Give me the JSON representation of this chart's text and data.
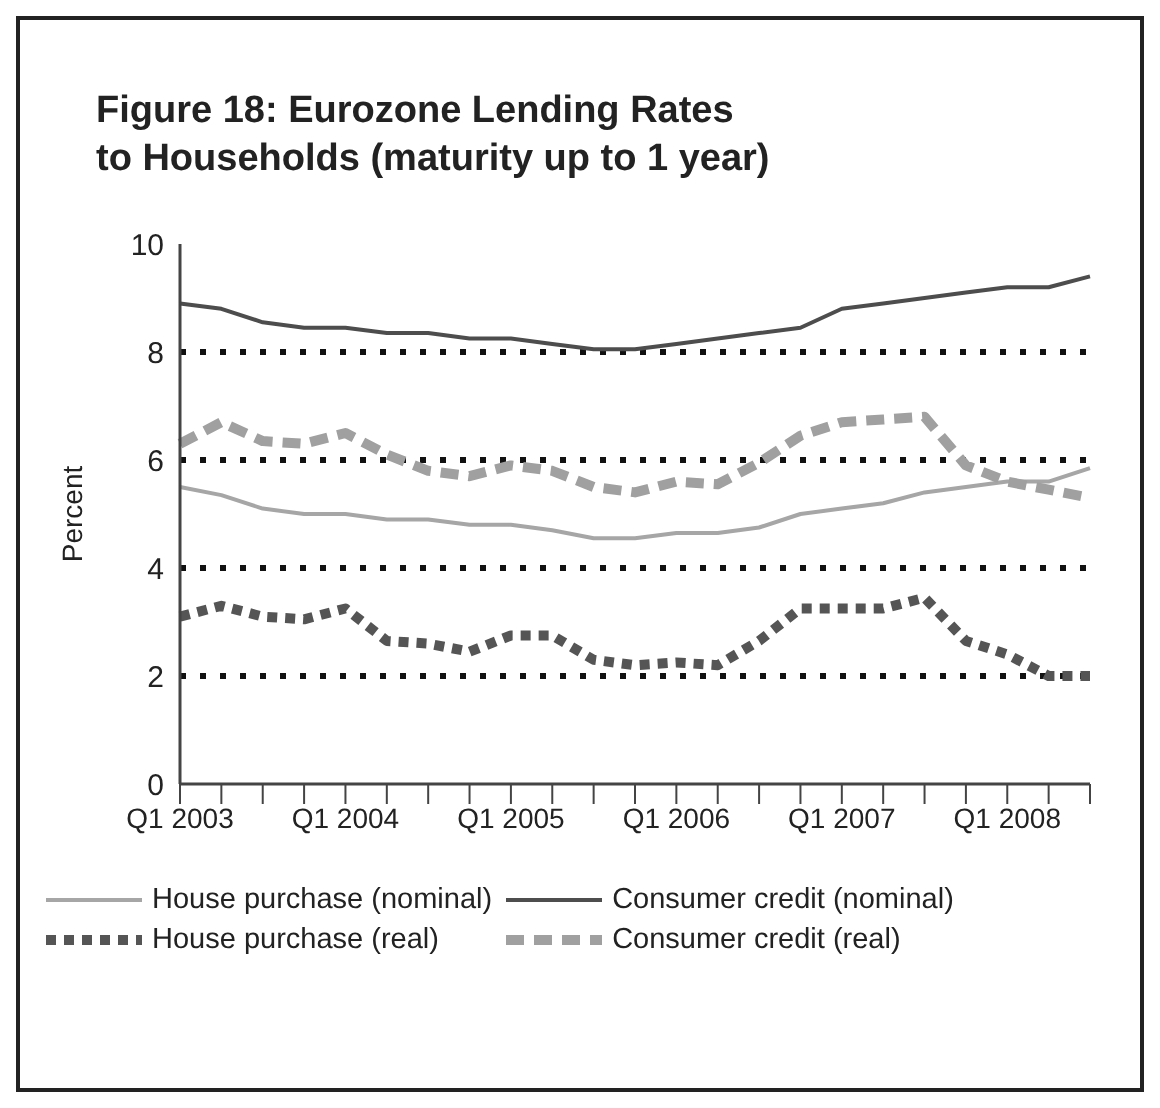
{
  "chart_data": {
    "type": "line",
    "title": "Figure 18: Eurozone Lending Rates\nto Households (maturity up to 1 year)",
    "ylabel": "Percent",
    "categories": [
      "Q1 2003",
      null,
      null,
      null,
      "Q1 2004",
      null,
      null,
      null,
      "Q1 2005",
      null,
      null,
      null,
      "Q1 2006",
      null,
      null,
      null,
      "Q1 2007",
      null,
      null,
      null,
      "Q1 2008",
      null,
      null
    ],
    "series": [
      {
        "name": "House purchase (nominal)",
        "color": "#a6a6a6",
        "line_style": "solid",
        "values": [
          5.5,
          5.35,
          5.1,
          5.0,
          5.0,
          4.9,
          4.9,
          4.8,
          4.8,
          4.7,
          4.55,
          4.55,
          4.65,
          4.65,
          4.75,
          5.0,
          5.1,
          5.2,
          5.4,
          5.5,
          5.6,
          5.6,
          5.85
        ]
      },
      {
        "name": "Consumer credit (nominal)",
        "color": "#4d4d4d",
        "line_style": "solid",
        "values": [
          8.9,
          8.8,
          8.55,
          8.45,
          8.45,
          8.35,
          8.35,
          8.25,
          8.25,
          8.15,
          8.05,
          8.05,
          8.15,
          8.25,
          8.35,
          8.45,
          8.8,
          8.9,
          9.0,
          9.1,
          9.2,
          9.2,
          9.4
        ]
      },
      {
        "name": "House purchase (real)",
        "color": "#555555",
        "line_style": "dotted",
        "values": [
          3.1,
          3.3,
          3.1,
          3.05,
          3.25,
          2.65,
          2.6,
          2.45,
          2.75,
          2.75,
          2.3,
          2.2,
          2.25,
          2.2,
          2.65,
          3.25,
          3.25,
          3.25,
          3.45,
          2.65,
          2.4,
          2.0,
          2.0
        ]
      },
      {
        "name": "Consumer credit (real)",
        "color": "#a0a0a0",
        "line_style": "dashed",
        "values": [
          6.3,
          6.7,
          6.35,
          6.3,
          6.5,
          6.1,
          5.8,
          5.7,
          5.9,
          5.8,
          5.5,
          5.4,
          5.6,
          5.55,
          5.95,
          6.45,
          6.7,
          6.75,
          6.8,
          5.9,
          5.6,
          5.45,
          5.3
        ]
      }
    ],
    "ylim": [
      0,
      10
    ],
    "yticks": [
      0,
      2,
      4,
      6,
      8,
      10
    ],
    "grid": "y",
    "legend": "bottom",
    "marker": "none"
  }
}
